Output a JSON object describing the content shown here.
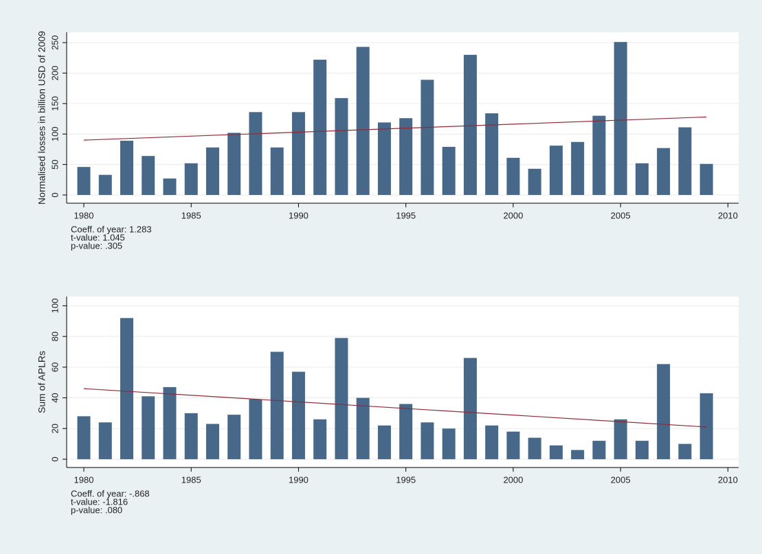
{
  "chart_data": [
    {
      "type": "bar",
      "ylabel": "Normalised losses in billion USD of 2009",
      "x": [
        1980,
        1981,
        1982,
        1983,
        1984,
        1985,
        1986,
        1987,
        1988,
        1989,
        1990,
        1991,
        1992,
        1993,
        1994,
        1995,
        1996,
        1997,
        1998,
        1999,
        2000,
        2001,
        2002,
        2003,
        2004,
        2005,
        2006,
        2007,
        2008,
        2009
      ],
      "values": [
        46,
        33,
        89,
        64,
        27,
        52,
        78,
        102,
        136,
        78,
        136,
        222,
        159,
        243,
        119,
        126,
        189,
        79,
        230,
        134,
        61,
        43,
        81,
        87,
        130,
        251,
        52,
        77,
        111,
        51
      ],
      "color": "#476888",
      "trend": {
        "x": [
          1980,
          2009
        ],
        "values": [
          90,
          128
        ],
        "color": "#8f2a35"
      },
      "xlim": [
        1979.2,
        2010.5
      ],
      "xticks": [
        1980,
        1985,
        1990,
        1995,
        2000,
        2005,
        2010
      ],
      "ylim": [
        -13.5,
        267
      ],
      "yticks": [
        0,
        50,
        100,
        150,
        200,
        250
      ],
      "grid": true,
      "annotations": [
        "Coeff. of year: 1.283",
        "t-value: 1.045",
        "p-value: .305"
      ]
    },
    {
      "type": "bar",
      "ylabel": "Sum of APLRs",
      "x": [
        1980,
        1981,
        1982,
        1983,
        1984,
        1985,
        1986,
        1987,
        1988,
        1989,
        1990,
        1991,
        1992,
        1993,
        1994,
        1995,
        1996,
        1997,
        1998,
        1999,
        2000,
        2001,
        2002,
        2003,
        2004,
        2005,
        2006,
        2007,
        2008,
        2009
      ],
      "values": [
        28,
        24,
        92,
        41,
        47,
        30,
        23,
        29,
        39,
        70,
        57,
        26,
        79,
        40,
        22,
        36,
        24,
        20,
        66,
        22,
        18,
        14,
        9,
        6,
        12,
        26,
        12,
        62,
        10,
        43
      ],
      "color": "#476888",
      "trend": {
        "x": [
          1980,
          2009
        ],
        "values": [
          46,
          21
        ],
        "color": "#8f2a35"
      },
      "xlim": [
        1979.2,
        2010.5
      ],
      "xticks": [
        1980,
        1985,
        1990,
        1995,
        2000,
        2005,
        2010
      ],
      "ylim": [
        -5.4,
        106
      ],
      "yticks": [
        0,
        20,
        40,
        60,
        80,
        100
      ],
      "grid": true,
      "annotations": [
        "Coeff. of year: -.868",
        "t-value: -1.816",
        "p-value: .080"
      ]
    }
  ]
}
